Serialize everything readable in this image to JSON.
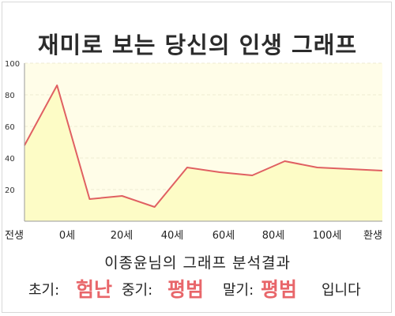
{
  "title": "재미로 보는 당신의 인생 그래프",
  "chart_data": {
    "type": "area",
    "title": "재미로 보는 당신의 인생 그래프",
    "xlabel": "",
    "ylabel": "",
    "x_tick_labels": [
      "전생",
      "0세",
      "20세",
      "40세",
      "60세",
      "80세",
      "100세",
      "환생"
    ],
    "y_ticks": [
      20,
      40,
      60,
      80,
      100
    ],
    "ylim": [
      0,
      100
    ],
    "grid": true,
    "series": [
      {
        "values": [
          48,
          86,
          14,
          16,
          9,
          34,
          31,
          29,
          38,
          34,
          33,
          32
        ]
      }
    ],
    "colors": {
      "line": "#e06062",
      "fill": "#fdfcc6",
      "plot_bg": "#fffde8",
      "grid": "#ecead2"
    }
  },
  "result": {
    "title": "이종윤님의 그래프 분석결과",
    "early_label": "초기:",
    "early_value": "험난",
    "middle_label": "중기:",
    "middle_value": "평범",
    "late_label": "말기:",
    "late_value": "평범",
    "suffix": "입니다"
  }
}
